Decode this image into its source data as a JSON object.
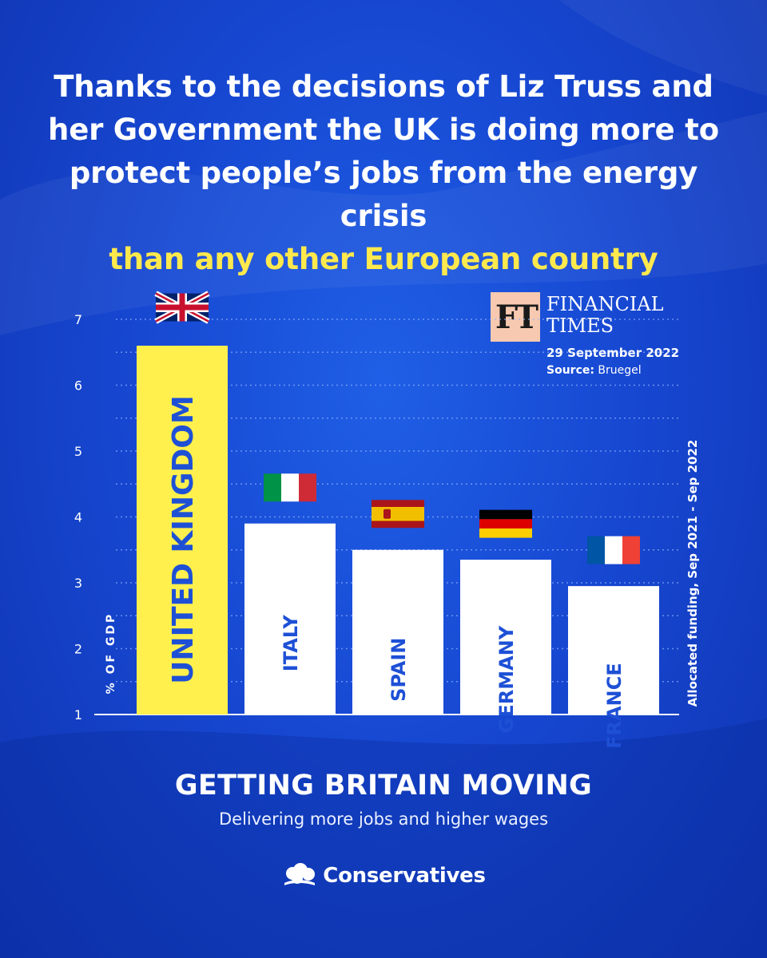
{
  "headline": {
    "line1": "Thanks to the decisions of Liz Truss and",
    "line2": "her Government the UK is doing more to",
    "line3": "protect people’s jobs from the energy crisis",
    "line4_highlight": "than any other European country"
  },
  "ft": {
    "logo": "FT",
    "name_line1": "FINANCIAL",
    "name_line2": "TIMES",
    "date": "29 September 2022",
    "source_label": "Source:",
    "source_value": "Bruegel"
  },
  "chart_data": {
    "type": "bar",
    "categories": [
      "UNITED KINGDOM",
      "ITALY",
      "SPAIN",
      "GERMANY",
      "FRANCE"
    ],
    "values": [
      6.6,
      3.9,
      3.5,
      3.35,
      2.95
    ],
    "ylim": [
      1,
      7
    ],
    "yticks": [
      1,
      2,
      3,
      4,
      5,
      6,
      7
    ],
    "ylabel": "% OF GDP",
    "right_label": "Allocated funding, Sep 2021 - Sep 2022",
    "grid": true,
    "highlight_category": "UNITED KINGDOM",
    "flags": [
      "uk-flag-icon",
      "italy-flag-icon",
      "spain-flag-icon",
      "germany-flag-icon",
      "france-flag-icon"
    ],
    "colors": {
      "highlight_bar": "#fff04d",
      "bar": "#ffffff",
      "bar_label": "#1e50d6"
    }
  },
  "footer": {
    "tagline": "GETTING BRITAIN MOVING",
    "subline": "Delivering more jobs and higher wages",
    "brand": "Conservatives"
  }
}
